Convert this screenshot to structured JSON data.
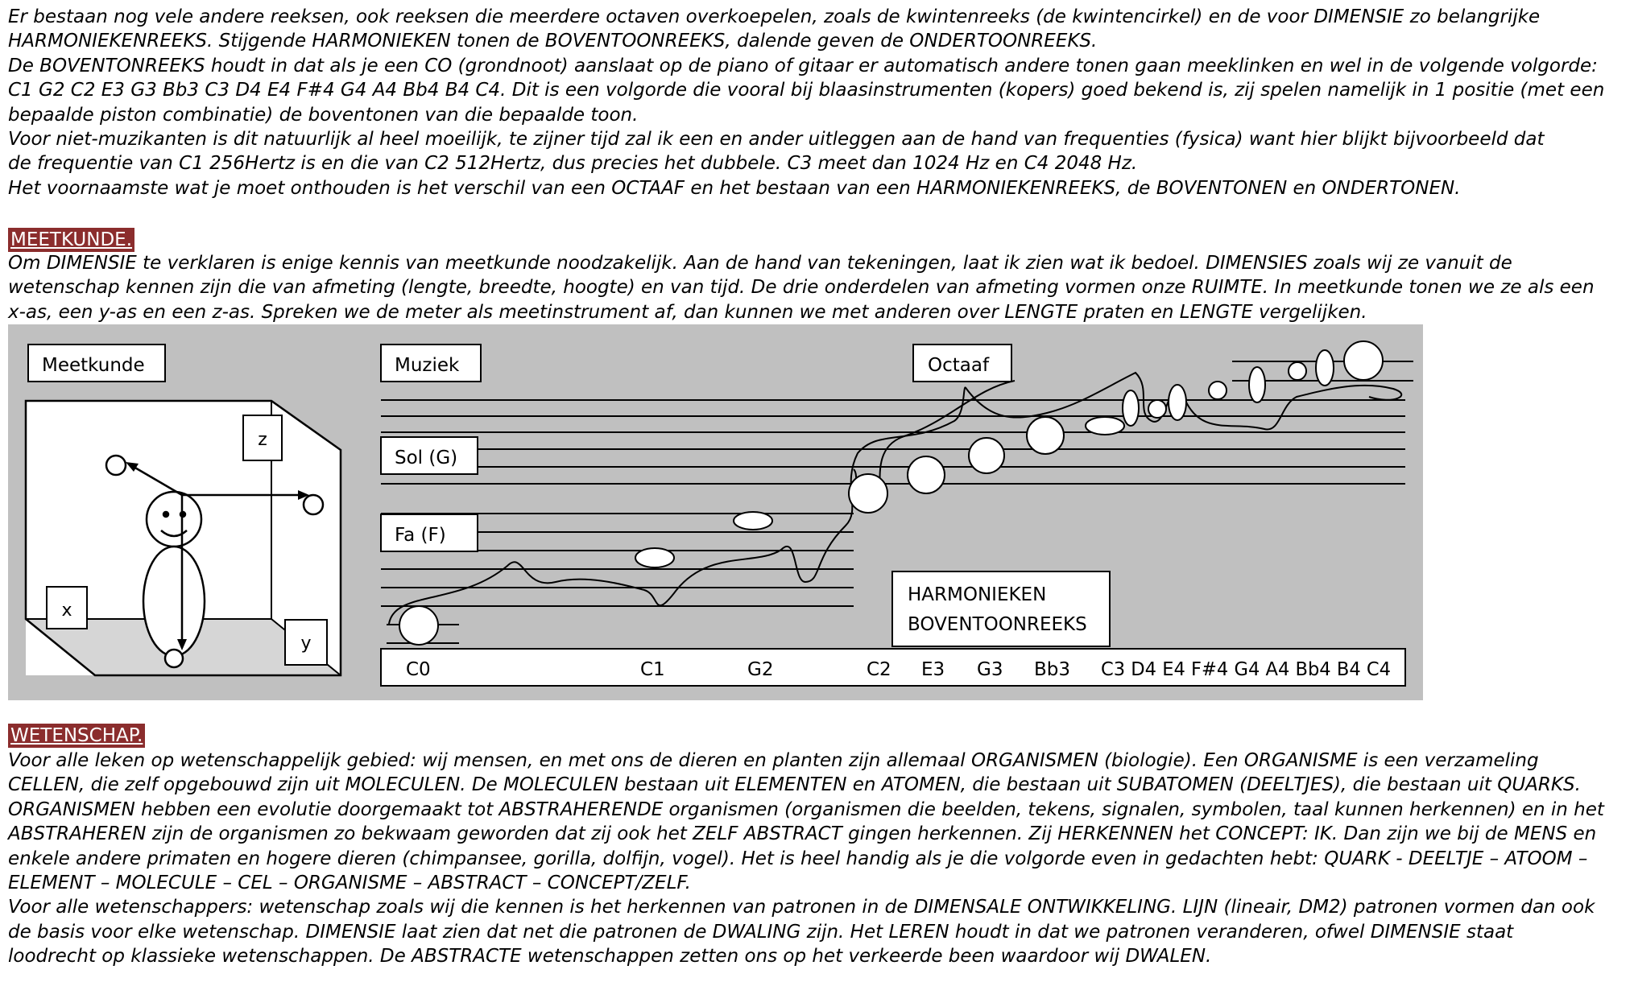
{
  "intro_lines": [
    "Er bestaan nog vele andere reeksen, ook reeksen die meerdere octaven overkoepelen, zoals de kwintenreeks (de kwintencirkel) en de voor DIMENSIE zo belangrijke",
    "HARMONIEKENREEKS. Stijgende HARMONIEKEN tonen de BOVENTOONREEKS, dalende geven de ONDERTOONREEKS.",
    "De BOVENTONREEKS houdt in dat als je een CO (grondnoot) aanslaat op de piano of gitaar er automatisch andere tonen gaan meeklinken en wel in de volgende volgorde:",
    "C1 G2 C2 E3 G3 Bb3 C3 D4 E4 F#4 G4 A4 Bb4 B4 C4. Dit is een volgorde die vooral bij blaasinstrumenten (kopers) goed bekend is, zij spelen namelijk in 1 positie (met een",
    "bepaalde piston combinatie) de boventonen van die bepaalde toon.",
    "Voor niet-muzikanten is dit natuurlijk al heel moeilijk, te zijner tijd zal ik een en ander uitleggen aan de hand van frequenties (fysica) want hier blijkt bijvoorbeeld dat",
    "de frequentie van C1 256Hertz is en die van C2 512Hertz, dus precies het dubbele. C3 meet dan 1024 Hz en C4 2048 Hz.",
    "Het voornaamste wat je moet onthouden is het verschil van een OCTAAF en het bestaan van een HARMONIEKENREEKS, de BOVENTONEN en ONDERTONEN."
  ],
  "meetkunde": {
    "heading": "MEETKUNDE.",
    "lines": [
      "Om DIMENSIE te verklaren is enige kennis van meetkunde noodzakelijk. Aan de hand van tekeningen, laat ik zien wat ik bedoel. DIMENSIES zoals wij ze vanuit de",
      "wetenschap kennen zijn die van afmeting (lengte, breedte, hoogte) en van tijd. De drie onderdelen van afmeting vormen onze RUIMTE. In meetkunde tonen we ze als een",
      "x-as, een y-as en een z-as. Spreken we de meter als meetinstrument af, dan kunnen we met anderen over LENGTE praten en LENGTE vergelijken."
    ]
  },
  "figure": {
    "meetkunde_label": "Meetkunde",
    "muziek_label": "Muziek",
    "octaaf_label": "Octaaf",
    "sol_label": "Sol (G)",
    "fa_label": "Fa (F)",
    "axis_z": "z",
    "axis_x": "x",
    "axis_y": "y",
    "harmonieken_line1": "HARMONIEKEN",
    "harmonieken_line2": "BOVENTOONREEKS",
    "notes": [
      "C0",
      "C1",
      "G2",
      "C2",
      "E3",
      "G3",
      "Bb3",
      "C3 D4 E4 F#4 G4 A4 Bb4 B4 C4"
    ]
  },
  "wetenschap": {
    "heading": "WETENSCHAP.",
    "lines": [
      "Voor alle leken op wetenschappelijk gebied: wij mensen, en met ons de dieren en planten zijn allemaal ORGANISMEN (biologie). Een ORGANISME is een verzameling",
      "CELLEN, die zelf opgebouwd zijn uit MOLECULEN. De MOLECULEN bestaan uit ELEMENTEN en ATOMEN, die bestaan uit SUBATOMEN (DEELTJES), die bestaan uit QUARKS.",
      "ORGANISMEN hebben een evolutie doorgemaakt tot ABSTRAHERENDE organismen (organismen die beelden, tekens, signalen, symbolen, taal kunnen herkennen) en in het",
      "ABSTRAHEREN zijn de organismen zo bekwaam geworden dat zij ook het ZELF ABSTRACT gingen herkennen. Zij HERKENNEN het CONCEPT: IK. Dan zijn we bij de MENS en",
      "enkele andere primaten en hogere dieren (chimpansee, gorilla, dolfijn, vogel). Het is heel handig als je die volgorde even in gedachten hebt: QUARK - DEELTJE – ATOOM –",
      "ELEMENT – MOLECULE – CEL – ORGANISME – ABSTRACT – CONCEPT/ZELF.",
      "Voor alle wetenschappers: wetenschap zoals wij die kennen is het herkennen van patronen in de DIMENSALE ONTWIKKELING. LIJN (lineair, DM2) patronen vormen dan ook",
      "de basis voor elke wetenschap. DIMENSIE laat zien dat net die patronen de DWALING zijn. Het LEREN houdt in dat we patronen veranderen, ofwel DIMENSIE staat",
      "loodrecht op klassieke wetenschappen. De ABSTRACTE wetenschappen zetten ons op het verkeerde been waardoor wij DWALEN."
    ]
  }
}
